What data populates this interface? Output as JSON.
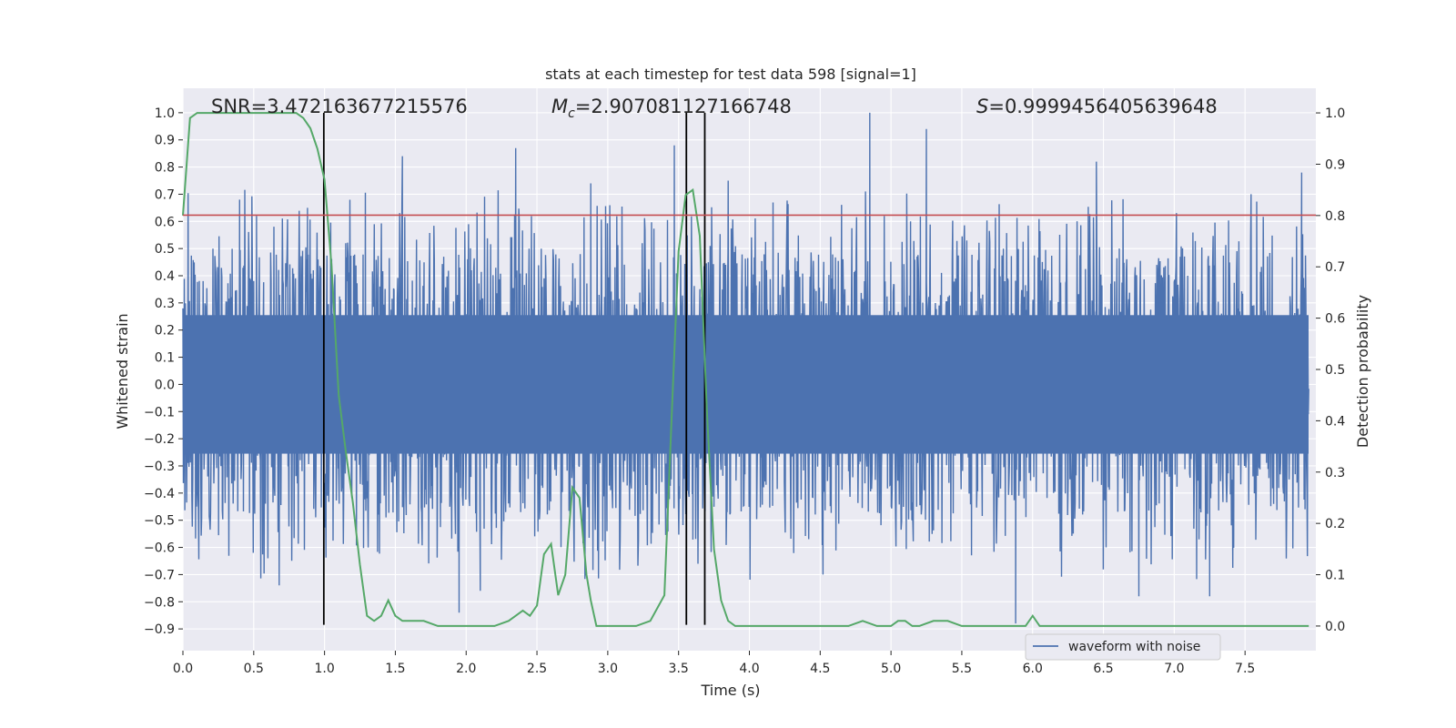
{
  "chart_data": {
    "type": "line",
    "title": "stats at each timestep for test data 598 [signal=1]",
    "xlabel": "Time (s)",
    "ylabel": "Whitened strain",
    "y2label": "Detection probability",
    "xlim": [
      0.0,
      8.0
    ],
    "ylim": [
      -0.98,
      1.09
    ],
    "y2lim": [
      -0.048,
      1.048
    ],
    "x_ticks": [
      0.0,
      0.5,
      1.0,
      1.5,
      2.0,
      2.5,
      3.0,
      3.5,
      4.0,
      4.5,
      5.0,
      5.5,
      6.0,
      6.5,
      7.0,
      7.5
    ],
    "x_tick_labels": [
      "0.0",
      "0.5",
      "1.0",
      "1.5",
      "2.0",
      "2.5",
      "3.0",
      "3.5",
      "4.0",
      "4.5",
      "5.0",
      "5.5",
      "6.0",
      "6.5",
      "7.0",
      "7.5"
    ],
    "y_ticks": [
      -0.9,
      -0.8,
      -0.7,
      -0.6,
      -0.5,
      -0.4,
      -0.3,
      -0.2,
      -0.1,
      0.0,
      0.1,
      0.2,
      0.3,
      0.4,
      0.5,
      0.6,
      0.7,
      0.8,
      0.9,
      1.0
    ],
    "y_tick_labels": [
      "−0.9",
      "−0.8",
      "−0.7",
      "−0.6",
      "−0.5",
      "−0.4",
      "−0.3",
      "−0.2",
      "−0.1",
      "0.0",
      "0.1",
      "0.2",
      "0.3",
      "0.4",
      "0.5",
      "0.6",
      "0.7",
      "0.8",
      "0.9",
      "1.0"
    ],
    "y2_ticks": [
      0.0,
      0.1,
      0.2,
      0.3,
      0.4,
      0.5,
      0.6,
      0.7,
      0.8,
      0.9,
      1.0
    ],
    "y2_tick_labels": [
      "0.0",
      "0.1",
      "0.2",
      "0.3",
      "0.4",
      "0.5",
      "0.6",
      "0.7",
      "0.8",
      "0.9",
      "1.0"
    ],
    "annotations": {
      "snr": "SNR=3.472163677215576",
      "mc_symbol": "M",
      "mc_sub": "c",
      "mc_value": "=2.907081127166748",
      "s_symbol": "S",
      "s_value": "=0.9999456405639648"
    },
    "threshold": {
      "value": 0.623,
      "color": "#c44e52"
    },
    "vertical_lines": [
      0.995,
      3.555,
      3.685
    ],
    "waveform": {
      "name": "waveform with noise",
      "color": "#4c72b0",
      "noise_band": 0.3,
      "spikes": [
        {
          "x": 0.4,
          "y": 0.68
        },
        {
          "x": 0.52,
          "y": 0.62
        },
        {
          "x": 0.6,
          "y": -0.64
        },
        {
          "x": 0.68,
          "y": -0.74
        },
        {
          "x": 0.88,
          "y": 0.65
        },
        {
          "x": 1.55,
          "y": 0.84
        },
        {
          "x": 1.95,
          "y": -0.84
        },
        {
          "x": 2.1,
          "y": -0.76
        },
        {
          "x": 2.35,
          "y": 0.87
        },
        {
          "x": 2.88,
          "y": 0.74
        },
        {
          "x": 3.47,
          "y": 0.88
        },
        {
          "x": 3.6,
          "y": -0.36
        },
        {
          "x": 3.85,
          "y": 0.75
        },
        {
          "x": 4.52,
          "y": -0.7
        },
        {
          "x": 4.85,
          "y": 1.0
        },
        {
          "x": 5.25,
          "y": 0.94
        },
        {
          "x": 5.88,
          "y": -0.88
        },
        {
          "x": 6.45,
          "y": 0.82
        },
        {
          "x": 6.75,
          "y": -0.78
        },
        {
          "x": 7.25,
          "y": -0.78
        },
        {
          "x": 7.9,
          "y": 0.78
        }
      ]
    },
    "probability": {
      "color": "#55a868",
      "x": [
        0.0,
        0.05,
        0.1,
        0.2,
        0.3,
        0.4,
        0.5,
        0.6,
        0.7,
        0.8,
        0.85,
        0.9,
        0.95,
        1.0,
        1.05,
        1.1,
        1.15,
        1.2,
        1.25,
        1.3,
        1.35,
        1.4,
        1.45,
        1.5,
        1.55,
        1.6,
        1.7,
        1.8,
        1.9,
        2.0,
        2.1,
        2.2,
        2.3,
        2.35,
        2.4,
        2.45,
        2.5,
        2.55,
        2.6,
        2.65,
        2.7,
        2.75,
        2.8,
        2.85,
        2.88,
        2.92,
        2.96,
        3.0,
        3.1,
        3.2,
        3.3,
        3.4,
        3.45,
        3.5,
        3.55,
        3.6,
        3.65,
        3.7,
        3.75,
        3.8,
        3.85,
        3.9,
        3.95,
        4.0,
        4.05,
        4.1,
        4.3,
        4.5,
        4.7,
        4.8,
        4.9,
        5.0,
        5.05,
        5.1,
        5.15,
        5.2,
        5.3,
        5.35,
        5.4,
        5.5,
        5.7,
        5.8,
        5.9,
        5.95,
        6.0,
        6.05,
        6.1,
        6.2,
        6.4,
        6.6,
        6.8,
        7.0,
        7.2,
        7.4,
        7.5,
        7.6,
        7.8,
        7.95
      ],
      "y": [
        0.8,
        0.99,
        1.0,
        1.0,
        1.0,
        1.0,
        1.0,
        1.0,
        1.0,
        1.0,
        0.99,
        0.97,
        0.93,
        0.87,
        0.7,
        0.45,
        0.34,
        0.24,
        0.12,
        0.02,
        0.01,
        0.02,
        0.05,
        0.02,
        0.01,
        0.01,
        0.01,
        0.0,
        0.0,
        0.0,
        0.0,
        0.0,
        0.01,
        0.02,
        0.03,
        0.02,
        0.04,
        0.14,
        0.16,
        0.06,
        0.1,
        0.27,
        0.25,
        0.1,
        0.05,
        0.0,
        0.0,
        0.0,
        0.0,
        0.0,
        0.01,
        0.06,
        0.4,
        0.73,
        0.84,
        0.85,
        0.76,
        0.42,
        0.15,
        0.05,
        0.01,
        0.0,
        0.0,
        0.0,
        0.0,
        0.0,
        0.0,
        0.0,
        0.0,
        0.01,
        0.0,
        0.0,
        0.01,
        0.01,
        0.0,
        0.0,
        0.01,
        0.01,
        0.01,
        0.0,
        0.0,
        0.0,
        0.0,
        0.0,
        0.02,
        0.0,
        0.0,
        0.0,
        0.0,
        0.0,
        0.0,
        0.0,
        0.0,
        0.0,
        0.0,
        0.0,
        0.0,
        0.0
      ]
    },
    "legend": {
      "label": "waveform with noise",
      "placement": "lower-right"
    }
  }
}
